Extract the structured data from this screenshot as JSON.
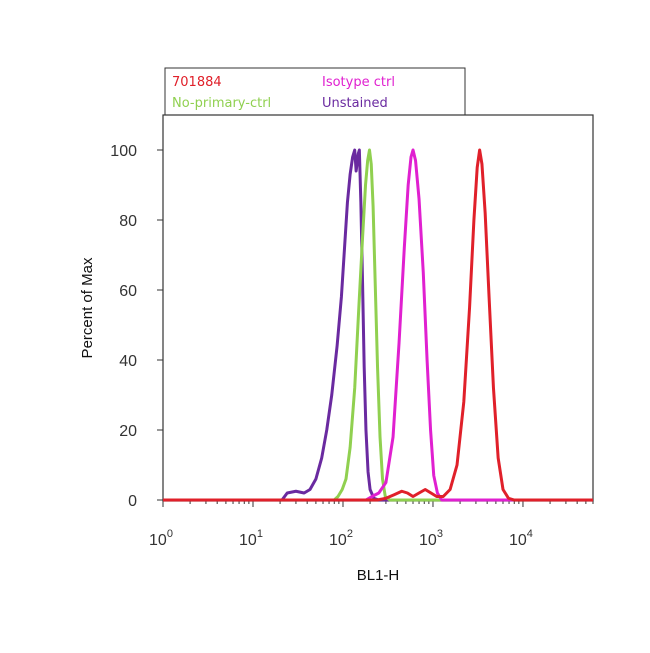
{
  "chart_data": {
    "type": "line",
    "title": "",
    "xlabel": "BL1-H",
    "ylabel": "Percent of Max",
    "x_scale": "log",
    "xlim": [
      1,
      60000
    ],
    "ylim": [
      0,
      110
    ],
    "grid": false,
    "legend": {
      "placement": "top-left",
      "entries": [
        {
          "label": "701884",
          "color": "#e0202a"
        },
        {
          "label": "Isotype ctrl",
          "color": "#e020d0"
        },
        {
          "label": "No-primary-ctrl",
          "color": "#90d050"
        },
        {
          "label": "Unstained",
          "color": "#6a2aa0"
        }
      ]
    },
    "x_ticks": [
      {
        "base": "10",
        "exp": "0",
        "value": 1
      },
      {
        "base": "10",
        "exp": "1",
        "value": 10
      },
      {
        "base": "10",
        "exp": "2",
        "value": 100
      },
      {
        "base": "10",
        "exp": "3",
        "value": 1000
      },
      {
        "base": "10",
        "exp": "4",
        "value": 10000
      }
    ],
    "y_ticks": [
      "0",
      "20",
      "40",
      "60",
      "80",
      "100"
    ],
    "series": [
      {
        "name": "Unstained",
        "color": "#6a2aa0",
        "points": [
          [
            1,
            0
          ],
          [
            21,
            0
          ],
          [
            24,
            2
          ],
          [
            30,
            2.5
          ],
          [
            37,
            2
          ],
          [
            43,
            3
          ],
          [
            50,
            6
          ],
          [
            58,
            12
          ],
          [
            66,
            20
          ],
          [
            75,
            30
          ],
          [
            86,
            44
          ],
          [
            96,
            58
          ],
          [
            104,
            72
          ],
          [
            112,
            85
          ],
          [
            120,
            93
          ],
          [
            128,
            98
          ],
          [
            135,
            100
          ],
          [
            140,
            94
          ],
          [
            148,
            99
          ],
          [
            152,
            100
          ],
          [
            158,
            85
          ],
          [
            165,
            62
          ],
          [
            172,
            38
          ],
          [
            180,
            20
          ],
          [
            190,
            8
          ],
          [
            200,
            3
          ],
          [
            220,
            0.5
          ],
          [
            250,
            0
          ],
          [
            60000,
            0
          ]
        ]
      },
      {
        "name": "No-primary-ctrl",
        "color": "#90d050",
        "points": [
          [
            1,
            0
          ],
          [
            80,
            0
          ],
          [
            88,
            1
          ],
          [
            98,
            3
          ],
          [
            108,
            6
          ],
          [
            120,
            15
          ],
          [
            135,
            32
          ],
          [
            150,
            55
          ],
          [
            165,
            75
          ],
          [
            178,
            90
          ],
          [
            188,
            97
          ],
          [
            197,
            100
          ],
          [
            206,
            96
          ],
          [
            216,
            84
          ],
          [
            228,
            62
          ],
          [
            242,
            38
          ],
          [
            258,
            18
          ],
          [
            275,
            6
          ],
          [
            295,
            1
          ],
          [
            330,
            0
          ],
          [
            60000,
            0
          ]
        ]
      },
      {
        "name": "Isotype ctrl",
        "color": "#e020d0",
        "points": [
          [
            1,
            0
          ],
          [
            180,
            0
          ],
          [
            210,
            1
          ],
          [
            250,
            2
          ],
          [
            300,
            5
          ],
          [
            360,
            18
          ],
          [
            420,
            45
          ],
          [
            480,
            72
          ],
          [
            530,
            90
          ],
          [
            570,
            98
          ],
          [
            600,
            100
          ],
          [
            640,
            97
          ],
          [
            700,
            86
          ],
          [
            780,
            65
          ],
          [
            860,
            40
          ],
          [
            940,
            20
          ],
          [
            1020,
            7
          ],
          [
            1120,
            2
          ],
          [
            1250,
            0
          ],
          [
            60000,
            0
          ]
        ]
      },
      {
        "name": "701884",
        "color": "#e0202a",
        "points": [
          [
            1,
            0
          ],
          [
            240,
            0
          ],
          [
            300,
            0.5
          ],
          [
            370,
            1.5
          ],
          [
            450,
            2.5
          ],
          [
            520,
            2
          ],
          [
            600,
            1
          ],
          [
            700,
            2
          ],
          [
            820,
            3
          ],
          [
            950,
            2
          ],
          [
            1100,
            1
          ],
          [
            1300,
            1
          ],
          [
            1550,
            3
          ],
          [
            1850,
            10
          ],
          [
            2200,
            28
          ],
          [
            2550,
            55
          ],
          [
            2850,
            80
          ],
          [
            3100,
            95
          ],
          [
            3300,
            100
          ],
          [
            3500,
            96
          ],
          [
            3800,
            82
          ],
          [
            4200,
            58
          ],
          [
            4700,
            32
          ],
          [
            5300,
            12
          ],
          [
            6000,
            3
          ],
          [
            6900,
            0.5
          ],
          [
            8000,
            0
          ],
          [
            60000,
            0
          ]
        ]
      }
    ]
  }
}
